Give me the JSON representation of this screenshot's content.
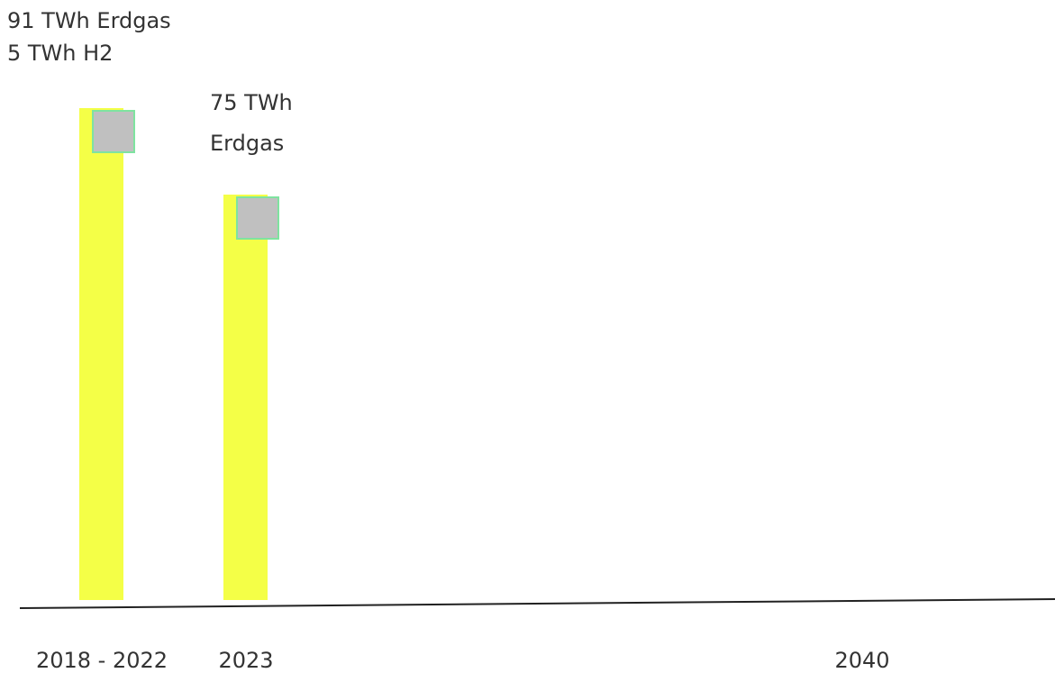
{
  "chart_data": {
    "type": "bar",
    "categories": [
      "2018 - 2022",
      "2023",
      "2040"
    ],
    "series": [
      {
        "name": "Erdgas",
        "color": "#f4ff47",
        "values": [
          91,
          75,
          null
        ]
      }
    ],
    "ylim": [
      0,
      110
    ],
    "annotations": [
      {
        "lines": [
          "91 TWh Erdgas",
          "5 TWh H2"
        ]
      },
      {
        "lines": [
          "75 TWh",
          "Erdgas"
        ]
      }
    ]
  }
}
